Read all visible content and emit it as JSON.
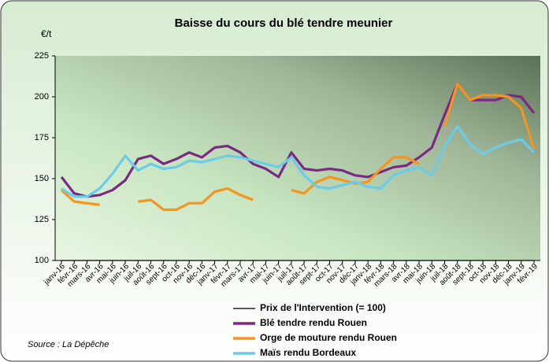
{
  "chart_data": {
    "type": "line",
    "title": "Baisse du cours du blé tendre meunier",
    "y_label": "€/t",
    "source": "Source : La Dépêche",
    "categories": [
      "janv-16",
      "févr-16",
      "mars-16",
      "avr-16",
      "mai-16",
      "juin-16",
      "juil-16",
      "août-16",
      "sept-16",
      "oct-16",
      "nov-16",
      "déc-16",
      "janv-17",
      "févr-17",
      "mars-17",
      "avr-17",
      "mai-17",
      "juin-17",
      "juil-17",
      "août-17",
      "sept-17",
      "oct-17",
      "nov-17",
      "déc-17",
      "janv-18",
      "févr-18",
      "mars-18",
      "avr-18",
      "mai-18",
      "juin-18",
      "juil-18",
      "août-18",
      "sept-18",
      "oct-18",
      "nov-18",
      "déc-18",
      "janv-19",
      "févr-19"
    ],
    "series": [
      {
        "name": "Prix de l'Intervention (= 100)",
        "color": "#000000",
        "values": [
          100,
          100,
          100,
          100,
          100,
          100,
          100,
          100,
          100,
          100,
          100,
          100,
          100,
          100,
          100,
          100,
          100,
          100,
          100,
          100,
          100,
          100,
          100,
          100,
          100,
          100,
          100,
          100,
          100,
          100,
          100,
          100,
          100,
          100,
          100,
          100,
          100,
          100
        ]
      },
      {
        "name": "Blé tendre rendu Rouen",
        "color": "#7b2a83",
        "values": [
          151,
          141,
          139,
          140,
          143,
          149,
          162,
          164,
          159,
          162,
          166,
          163,
          169,
          170,
          166,
          159,
          156,
          151,
          166,
          156,
          155,
          156,
          155,
          152,
          151,
          154,
          157,
          158,
          163,
          169,
          189,
          208,
          198,
          198,
          198,
          201,
          200,
          190
        ]
      },
      {
        "name": "Orge de mouture rendu Rouen",
        "color": "#f7941d",
        "values": [
          143,
          136,
          135,
          134,
          null,
          null,
          136,
          137,
          131,
          131,
          135,
          135,
          142,
          144,
          140,
          137,
          null,
          null,
          143,
          141,
          148,
          151,
          149,
          147,
          148,
          156,
          163,
          163,
          159,
          null,
          182,
          208,
          198,
          201,
          201,
          200,
          193,
          168
        ]
      },
      {
        "name": "Maïs rendu Bordeaux",
        "color": "#6ccbe8",
        "values": [
          144,
          139,
          139,
          144,
          153,
          164,
          155,
          159,
          156,
          157,
          161,
          160,
          162,
          164,
          163,
          161,
          159,
          157,
          163,
          152,
          145,
          144,
          146,
          148,
          145,
          144,
          152,
          155,
          157,
          152,
          170,
          182,
          171,
          165,
          169,
          172,
          174,
          166
        ]
      }
    ],
    "ylim": [
      100,
      225
    ],
    "yticks": [
      100,
      125,
      150,
      175,
      200,
      225
    ]
  }
}
